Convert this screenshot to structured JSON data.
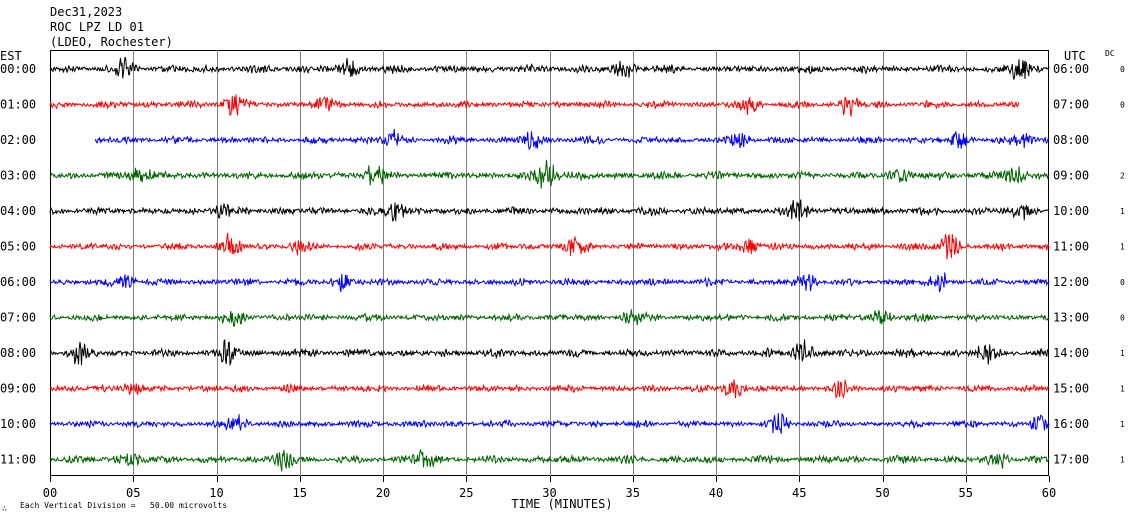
{
  "header": {
    "date": "Dec31,2023",
    "station": "ROC LPZ LD 01",
    "network": "(LDEO, Rochester)"
  },
  "labels": {
    "left_tz": "EST",
    "right_tz": "UTC",
    "dc": "DC",
    "xlabel": "TIME (MINUTES)",
    "scale_note": "Each Vertical Division =   50.00 microvolts",
    "corner_mark": "∴"
  },
  "chart_data": {
    "type": "line",
    "title": "ROC LPZ LD 01",
    "xlabel": "TIME (MINUTES)",
    "ylabel": "",
    "xlim": [
      0,
      60
    ],
    "x_ticks": [
      0,
      5,
      10,
      15,
      20,
      25,
      30,
      35,
      40,
      45,
      50,
      55,
      60
    ],
    "x_tick_labels": [
      "00",
      "05",
      "10",
      "15",
      "20",
      "25",
      "30",
      "35",
      "40",
      "45",
      "50",
      "55",
      "60"
    ],
    "grid": true,
    "vertical_division_microvolts": 50.0,
    "colors": [
      "#000000",
      "#ff0000",
      "#0000ff",
      "#006400"
    ],
    "rows": [
      {
        "est": "00:00",
        "utc": "06:00",
        "dc": "0",
        "color": "#000000",
        "start_min": 0.0,
        "end_min": 60.0,
        "amp": 1.0,
        "bursts": [
          [
            4.5,
            1.0
          ],
          [
            18.0,
            1.2
          ],
          [
            34.5,
            0.8
          ],
          [
            58.3,
            1.4
          ]
        ]
      },
      {
        "est": "01:00",
        "utc": "07:00",
        "dc": "0",
        "color": "#ff0000",
        "start_min": 0.0,
        "end_min": 58.2,
        "amp": 0.9,
        "bursts": [
          [
            11.0,
            1.1
          ],
          [
            16.5,
            0.7
          ],
          [
            42.0,
            1.0
          ],
          [
            48.0,
            1.1
          ]
        ]
      },
      {
        "est": "02:00",
        "utc": "08:00",
        "dc": "",
        "color": "#0000ff",
        "start_min": 2.7,
        "end_min": 60.0,
        "amp": 0.9,
        "bursts": [
          [
            20.5,
            1.0
          ],
          [
            29.0,
            1.1
          ],
          [
            41.5,
            0.7
          ],
          [
            54.5,
            1.0
          ],
          [
            58.5,
            0.8
          ]
        ]
      },
      {
        "est": "03:00",
        "utc": "09:00",
        "dc": "2",
        "color": "#006400",
        "start_min": 0.0,
        "end_min": 60.0,
        "amp": 1.0,
        "bursts": [
          [
            5.5,
            1.2
          ],
          [
            19.5,
            1.2
          ],
          [
            29.8,
            1.8
          ],
          [
            51.0,
            0.8
          ],
          [
            58.0,
            0.9
          ]
        ]
      },
      {
        "est": "04:00",
        "utc": "10:00",
        "dc": "1",
        "color": "#000000",
        "start_min": 0.0,
        "end_min": 60.0,
        "amp": 1.0,
        "bursts": [
          [
            10.2,
            1.0
          ],
          [
            20.8,
            1.0
          ],
          [
            45.0,
            1.1
          ],
          [
            58.5,
            0.9
          ]
        ]
      },
      {
        "est": "05:00",
        "utc": "11:00",
        "dc": "1",
        "color": "#ff0000",
        "start_min": 0.0,
        "end_min": 60.0,
        "amp": 0.9,
        "bursts": [
          [
            10.8,
            1.3
          ],
          [
            15.0,
            1.0
          ],
          [
            31.5,
            1.0
          ],
          [
            42.0,
            1.0
          ],
          [
            54.0,
            1.3
          ]
        ]
      },
      {
        "est": "06:00",
        "utc": "12:00",
        "dc": "0",
        "color": "#0000ff",
        "start_min": 0.0,
        "end_min": 60.0,
        "amp": 0.9,
        "bursts": [
          [
            4.5,
            0.9
          ],
          [
            17.5,
            1.0
          ],
          [
            45.5,
            0.9
          ],
          [
            53.5,
            1.0
          ]
        ]
      },
      {
        "est": "07:00",
        "utc": "13:00",
        "dc": "0",
        "color": "#006400",
        "start_min": 0.0,
        "end_min": 60.0,
        "amp": 0.9,
        "bursts": [
          [
            11.0,
            0.8
          ],
          [
            35.0,
            0.8
          ],
          [
            50.0,
            1.0
          ]
        ]
      },
      {
        "est": "08:00",
        "utc": "14:00",
        "dc": "1",
        "color": "#000000",
        "start_min": 0.0,
        "end_min": 60.0,
        "amp": 1.0,
        "bursts": [
          [
            1.8,
            1.1
          ],
          [
            10.7,
            1.2
          ],
          [
            45.2,
            1.2
          ],
          [
            56.2,
            0.9
          ]
        ]
      },
      {
        "est": "09:00",
        "utc": "15:00",
        "dc": "1",
        "color": "#ff0000",
        "start_min": 0.0,
        "end_min": 60.0,
        "amp": 0.9,
        "bursts": [
          [
            4.8,
            0.8
          ],
          [
            41.0,
            1.4
          ],
          [
            47.5,
            0.8
          ]
        ]
      },
      {
        "est": "10:00",
        "utc": "16:00",
        "dc": "1",
        "color": "#0000ff",
        "start_min": 0.0,
        "end_min": 60.0,
        "amp": 0.9,
        "bursts": [
          [
            11.3,
            1.2
          ],
          [
            43.8,
            1.1
          ],
          [
            59.5,
            1.0
          ]
        ]
      },
      {
        "est": "11:00",
        "utc": "17:00",
        "dc": "1",
        "color": "#006400",
        "start_min": 0.0,
        "end_min": 60.0,
        "amp": 1.0,
        "bursts": [
          [
            4.7,
            1.1
          ],
          [
            14.0,
            1.0
          ],
          [
            22.5,
            1.1
          ],
          [
            57.0,
            0.8
          ]
        ]
      }
    ]
  }
}
